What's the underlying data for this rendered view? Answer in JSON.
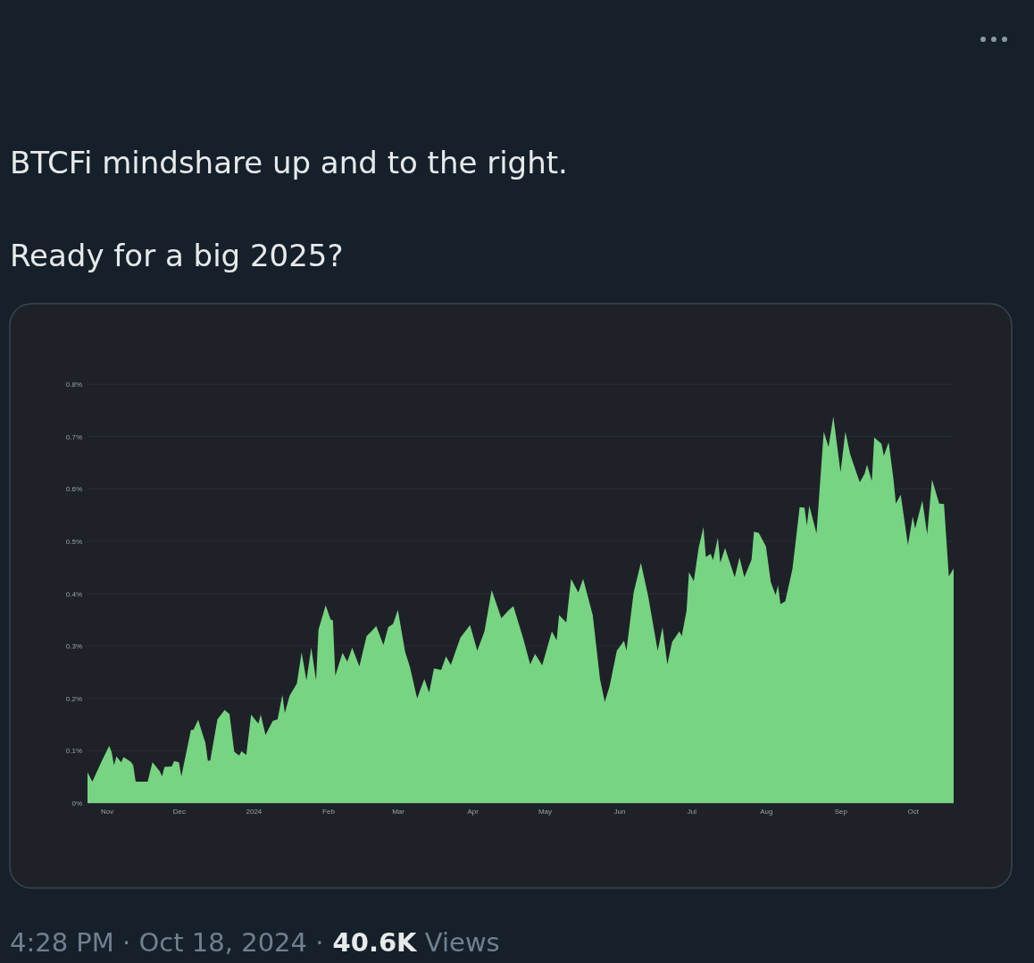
{
  "chart_data": {
    "type": "area",
    "title": "BTCFi mindshare up and to the right.",
    "subtitle": "Ready for a big 2025?",
    "annotations": [
      "4:28 PM · Oct 18, 2024 ·",
      "40.6K",
      "Views"
    ],
    "x": [
      "2023-10-24",
      "2023-10-26",
      "2023-10-28",
      "2023-10-30",
      "2023-11-02",
      "2023-11-03",
      "2023-11-04",
      "2023-11-05",
      "2023-11-07",
      "2023-11-08",
      "2023-11-11",
      "2023-11-12",
      "2023-11-13",
      "2023-11-18",
      "2023-11-20",
      "2023-11-23",
      "2023-11-24",
      "2023-11-25",
      "2023-11-28",
      "2023-11-29",
      "2023-12-01",
      "2023-12-02",
      "2023-12-06",
      "2023-12-07",
      "2023-12-09",
      "2023-12-11",
      "2023-12-12",
      "2023-12-13",
      "2023-12-14",
      "2023-12-17",
      "2023-12-20",
      "2023-12-22",
      "2023-12-24",
      "2023-12-26",
      "2023-12-27",
      "2023-12-29",
      "2023-12-31",
      "2024-01-03",
      "2024-01-04",
      "2024-01-06",
      "2024-01-09",
      "2024-01-11",
      "2024-01-13",
      "2024-01-14",
      "2024-01-16",
      "2024-01-19",
      "2024-01-21",
      "2024-01-23",
      "2024-01-25",
      "2024-01-27",
      "2024-01-28",
      "2024-01-31",
      "2024-02-02",
      "2024-02-03",
      "2024-02-04",
      "2024-02-07",
      "2024-02-09",
      "2024-02-11",
      "2024-02-14",
      "2024-02-17",
      "2024-02-19",
      "2024-02-21",
      "2024-02-24",
      "2024-02-26",
      "2024-02-28",
      "2024-03-01",
      "2024-03-04",
      "2024-03-06",
      "2024-03-09",
      "2024-03-12",
      "2024-03-14",
      "2024-03-16",
      "2024-03-19",
      "2024-03-21",
      "2024-03-23",
      "2024-03-27",
      "2024-03-31",
      "2024-04-03",
      "2024-04-06",
      "2024-04-09",
      "2024-04-13",
      "2024-04-16",
      "2024-04-18",
      "2024-04-22",
      "2024-04-25",
      "2024-04-27",
      "2024-04-30",
      "2024-05-04",
      "2024-05-06",
      "2024-05-07",
      "2024-05-10",
      "2024-05-12",
      "2024-05-15",
      "2024-05-17",
      "2024-05-21",
      "2024-05-24",
      "2024-05-26",
      "2024-05-28",
      "2024-05-31",
      "2024-06-03",
      "2024-06-04",
      "2024-06-07",
      "2024-06-10",
      "2024-06-13",
      "2024-06-17",
      "2024-06-19",
      "2024-06-21",
      "2024-06-23",
      "2024-06-26",
      "2024-06-27",
      "2024-06-29",
      "2024-06-30",
      "2024-07-02",
      "2024-07-04",
      "2024-07-06",
      "2024-07-07",
      "2024-07-09",
      "2024-07-10",
      "2024-07-12",
      "2024-07-13",
      "2024-07-15",
      "2024-07-19",
      "2024-07-21",
      "2024-07-23",
      "2024-07-26",
      "2024-07-27",
      "2024-07-29",
      "2024-08-01",
      "2024-08-03",
      "2024-08-05",
      "2024-08-06",
      "2024-08-07",
      "2024-08-09",
      "2024-08-12",
      "2024-08-15",
      "2024-08-17",
      "2024-08-18",
      "2024-08-19",
      "2024-08-22",
      "2024-08-25",
      "2024-08-27",
      "2024-08-29",
      "2024-09-01",
      "2024-09-03",
      "2024-09-05",
      "2024-09-07",
      "2024-09-09",
      "2024-09-11",
      "2024-09-12",
      "2024-09-14",
      "2024-09-15",
      "2024-09-18",
      "2024-09-19",
      "2024-09-21",
      "2024-09-23",
      "2024-09-24",
      "2024-09-26",
      "2024-09-29",
      "2024-10-01",
      "2024-10-02",
      "2024-10-05",
      "2024-10-07",
      "2024-10-09",
      "2024-10-12",
      "2024-10-14",
      "2024-10-16",
      "2024-10-18"
    ],
    "series": [
      {
        "color": "#77d482",
        "values": [
          0.059,
          0.041,
          0.061,
          0.081,
          0.109,
          0.098,
          0.072,
          0.089,
          0.078,
          0.088,
          0.079,
          0.072,
          0.041,
          0.041,
          0.078,
          0.061,
          0.051,
          0.069,
          0.07,
          0.08,
          0.078,
          0.051,
          0.14,
          0.14,
          0.159,
          0.129,
          0.115,
          0.081,
          0.081,
          0.16,
          0.178,
          0.17,
          0.098,
          0.091,
          0.099,
          0.092,
          0.169,
          0.152,
          0.169,
          0.13,
          0.157,
          0.16,
          0.207,
          0.172,
          0.205,
          0.228,
          0.288,
          0.234,
          0.297,
          0.234,
          0.331,
          0.378,
          0.351,
          0.349,
          0.243,
          0.287,
          0.27,
          0.297,
          0.261,
          0.319,
          0.328,
          0.338,
          0.302,
          0.336,
          0.342,
          0.369,
          0.289,
          0.26,
          0.2,
          0.237,
          0.211,
          0.257,
          0.254,
          0.28,
          0.264,
          0.316,
          0.34,
          0.291,
          0.328,
          0.407,
          0.353,
          0.368,
          0.376,
          0.316,
          0.265,
          0.285,
          0.263,
          0.328,
          0.311,
          0.359,
          0.345,
          0.428,
          0.402,
          0.428,
          0.359,
          0.237,
          0.193,
          0.223,
          0.291,
          0.31,
          0.291,
          0.402,
          0.459,
          0.396,
          0.291,
          0.336,
          0.265,
          0.308,
          0.328,
          0.319,
          0.368,
          0.441,
          0.424,
          0.487,
          0.527,
          0.47,
          0.476,
          0.464,
          0.507,
          0.459,
          0.487,
          0.431,
          0.469,
          0.431,
          0.465,
          0.518,
          0.516,
          0.49,
          0.422,
          0.397,
          0.416,
          0.38,
          0.385,
          0.447,
          0.565,
          0.564,
          0.53,
          0.568,
          0.515,
          0.709,
          0.68,
          0.738,
          0.632,
          0.709,
          0.666,
          0.639,
          0.613,
          0.629,
          0.646,
          0.615,
          0.698,
          0.686,
          0.663,
          0.689,
          0.618,
          0.572,
          0.589,
          0.493,
          0.547,
          0.524,
          0.578,
          0.513,
          0.618,
          0.572,
          0.571,
          0.433,
          0.448
        ]
      }
    ],
    "xlim": [
      "2023-10-24",
      "2024-10-18"
    ],
    "xticks": [
      {
        "value": "2023-11-01",
        "label": "Nov"
      },
      {
        "value": "2023-12-01",
        "label": "Dec"
      },
      {
        "value": "2024-01-01",
        "label": "2024"
      },
      {
        "value": "2024-02-01",
        "label": "Feb"
      },
      {
        "value": "2024-03-01",
        "label": "Mar"
      },
      {
        "value": "2024-04-01",
        "label": "Apr"
      },
      {
        "value": "2024-05-01",
        "label": "May"
      },
      {
        "value": "2024-06-01",
        "label": "Jun"
      },
      {
        "value": "2024-07-01",
        "label": "Jul"
      },
      {
        "value": "2024-08-01",
        "label": "Aug"
      },
      {
        "value": "2024-09-01",
        "label": "Sep"
      },
      {
        "value": "2024-10-01",
        "label": "Oct"
      }
    ],
    "ylim": [
      0,
      0.8
    ],
    "yticks": [
      {
        "value": 0,
        "label": "0%"
      },
      {
        "value": 0.1,
        "label": "0.1%"
      },
      {
        "value": 0.2,
        "label": "0.2%"
      },
      {
        "value": 0.3,
        "label": "0.3%"
      },
      {
        "value": 0.4,
        "label": "0.4%"
      },
      {
        "value": 0.5,
        "label": "0.5%"
      },
      {
        "value": 0.6,
        "label": "0.6%"
      },
      {
        "value": 0.7,
        "label": "0.7%"
      },
      {
        "value": 0.8,
        "label": "0.8%"
      }
    ],
    "grid": "y"
  }
}
